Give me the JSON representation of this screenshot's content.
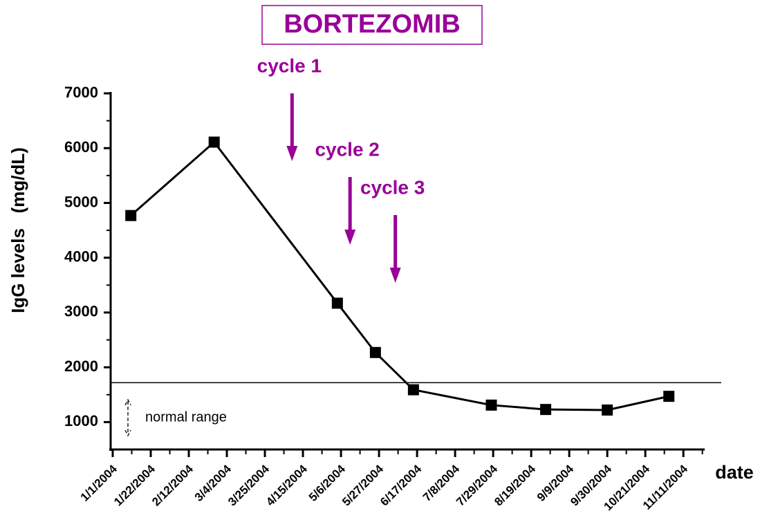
{
  "chart_data": {
    "type": "line",
    "title": "BORTEZOMIB",
    "x_label": "date",
    "y_label": "IgG levels   (mg/dL)",
    "x": [
      "1/11/2004",
      "2/26/2004",
      "5/4/2004",
      "5/25/2004",
      "6/15/2004",
      "7/28/2004",
      "8/27/2004",
      "9/30/2004",
      "11/3/2004"
    ],
    "series": [
      {
        "name": "IgG",
        "color": "#000000",
        "values": [
          4770,
          6110,
          3170,
          2270,
          1590,
          1310,
          1230,
          1220,
          1470
        ]
      }
    ],
    "xlim": [
      "1/1/2004",
      "11/22/2004"
    ],
    "xticks": [
      "1/1/2004",
      "1/22/2004",
      "2/12/2004",
      "3/4/2004",
      "3/25/2004",
      "4/15/2004",
      "5/6/2004",
      "5/27/2004",
      "6/17/2004",
      "7/8/2004",
      "7/29/2004",
      "8/19/2004",
      "9/9/2004",
      "9/30/2004",
      "10/21/2004",
      "11/11/2004"
    ],
    "ylim": [
      500,
      7000
    ],
    "yticks": [
      1000,
      2000,
      3000,
      4000,
      5000,
      6000,
      7000
    ],
    "reference_line": {
      "value": 1720,
      "label": "normal range"
    },
    "annotations": [
      {
        "text": "cycle 1",
        "x": "4/9/2004"
      },
      {
        "text": "cycle 2",
        "x": "5/11/2004"
      },
      {
        "text": "cycle 3",
        "x": "6/5/2004"
      }
    ],
    "annotation_color": "#990099"
  }
}
